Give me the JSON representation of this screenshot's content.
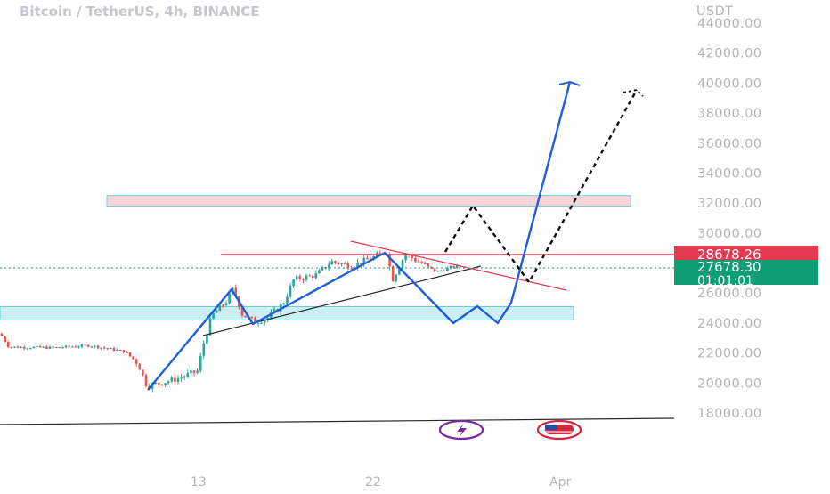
{
  "chart_data": {
    "type": "candlestick",
    "title": "Bitcoin / TetherUS, 4h, BINANCE",
    "currency_label": "USDT",
    "y_ticks": [
      44000,
      42000,
      40000,
      38000,
      36000,
      34000,
      32000,
      30000,
      26000,
      24000,
      22000,
      20000,
      18000
    ],
    "y_ticks_labels": [
      "44000.00",
      "42000.00",
      "40000.00",
      "38000.00",
      "36000.00",
      "34000.00",
      "32000.00",
      "30000.00",
      "26000.00",
      "24000.00",
      "22000.00",
      "20000.00",
      "18000.00"
    ],
    "ylim": [
      16000,
      45000
    ],
    "x_ticks": [
      "13",
      "22",
      "Apr"
    ],
    "price_labels": {
      "resistance_value": "28678.26",
      "last_price": "27678.30",
      "countdown": "01:01:01"
    },
    "price_path": [
      [
        0,
        23300
      ],
      [
        10,
        22400
      ],
      [
        60,
        22350
      ],
      [
        100,
        22500
      ],
      [
        140,
        22100
      ],
      [
        155,
        21300
      ],
      [
        165,
        19800
      ],
      [
        180,
        20000
      ],
      [
        200,
        20300
      ],
      [
        222,
        20800
      ],
      [
        228,
        22500
      ],
      [
        238,
        24500
      ],
      [
        255,
        25500
      ],
      [
        262,
        26300
      ],
      [
        272,
        24600
      ],
      [
        285,
        24100
      ],
      [
        300,
        24300
      ],
      [
        318,
        25300
      ],
      [
        330,
        26900
      ],
      [
        355,
        27200
      ],
      [
        372,
        28100
      ],
      [
        395,
        27800
      ],
      [
        420,
        28400
      ],
      [
        435,
        28800
      ],
      [
        440,
        26800
      ],
      [
        455,
        28600
      ],
      [
        470,
        28100
      ],
      [
        490,
        27400
      ],
      [
        505,
        27700
      ],
      [
        520,
        27800
      ]
    ],
    "zones": [
      {
        "name": "upper-resistance-zone",
        "from": 31800,
        "to": 32500,
        "x_start": 120,
        "x_end": 708,
        "color": "#f9d4d8"
      },
      {
        "name": "lower-support-zone",
        "from": 24200,
        "to": 25100,
        "x_start": 0,
        "x_end": 644,
        "color": "#cdeef2"
      }
    ],
    "colors": {
      "up": "#26a69a",
      "down": "#ef5350",
      "projection": "#1e5fd6",
      "resistance": "#e53950",
      "last_price_bg": "#0f9d76"
    }
  }
}
